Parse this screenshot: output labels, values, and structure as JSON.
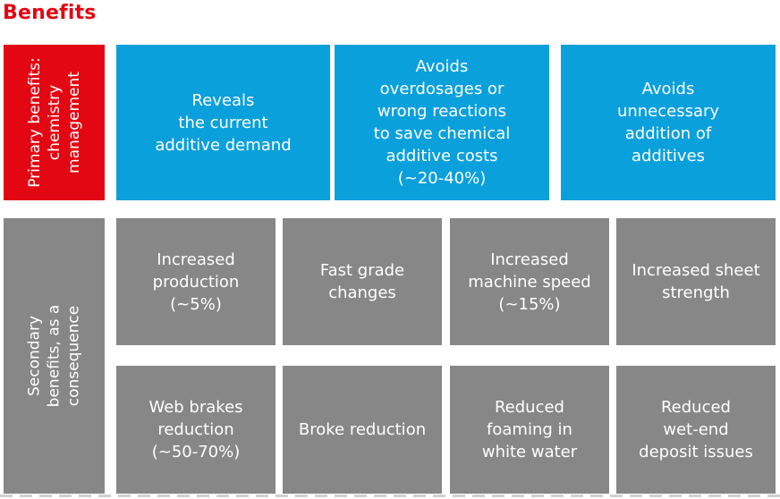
{
  "title": "Benefits",
  "primary": {
    "label": [
      "Primary benefits:",
      "chemistry",
      "management"
    ],
    "boxes": [
      [
        "Reveals",
        "the current",
        "additive demand"
      ],
      [
        "Avoids",
        "overdosages or",
        "wrong reactions",
        "to save chemical",
        "additive costs",
        "(~20-40%)"
      ],
      [
        "Avoids",
        "unnecessary",
        "addition of",
        "additives"
      ]
    ]
  },
  "secondary": {
    "label": [
      "Secondary",
      "benefits, as a",
      "consequence"
    ],
    "row1": [
      [
        "Increased",
        "production",
        "(~5%)"
      ],
      [
        "Fast grade",
        "changes"
      ],
      [
        "Increased",
        "machine speed",
        "(~15%)"
      ],
      [
        "Increased sheet",
        "strength"
      ]
    ],
    "row2": [
      [
        "Web brakes",
        "reduction",
        "(~50-70%)"
      ],
      [
        "Broke reduction"
      ],
      [
        "Reduced",
        "foaming in",
        "white water"
      ],
      [
        "Reduced",
        "wet-end",
        "deposit issues"
      ]
    ]
  },
  "colors": {
    "primary_red": "#e30613",
    "primary_blue": "#0aa0dc",
    "secondary_gray": "#878787"
  }
}
